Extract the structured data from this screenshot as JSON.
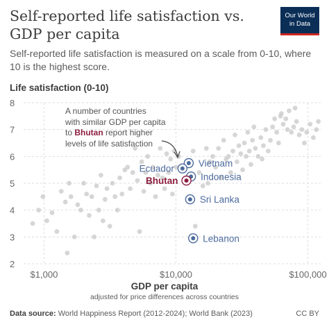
{
  "header": {
    "title": "Self-reported life satisfaction vs. GDP per capita",
    "subtitle": "Self-reported life satisfaction is measured on a scale from 0-10, where 10 is the highest score."
  },
  "logo": {
    "line1": "Our World",
    "line2": "in Data",
    "bg_color": "#0b2e57",
    "accent_color": "#ce261e"
  },
  "footer": {
    "source_label": "Data source:",
    "source_text": "World Happiness Report (2012-2024); World Bank (2023)",
    "license": "CC BY"
  },
  "annotation": {
    "line1": "A number of countries",
    "line2": "with similar GDP per capita",
    "line3_pre": "to ",
    "line3_hl": "Bhutan",
    "line3_post": " report higher",
    "line4": "levels of life satisfaction"
  },
  "chart_data": {
    "type": "scatter",
    "title": "Self-reported life satisfaction vs. GDP per capita",
    "xlabel": "GDP per capita",
    "xlabel_note": "adjusted for price differences across countries",
    "ylabel": "Life satisfaction (0-10)",
    "x_scale": "log",
    "xlim": [
      700,
      125000
    ],
    "ylim": [
      2,
      8
    ],
    "x_ticks": [
      1000,
      10000,
      100000
    ],
    "x_tick_labels": [
      "$1,000",
      "$10,000",
      "$100,000"
    ],
    "y_ticks": [
      2,
      3,
      4,
      5,
      6,
      7,
      8
    ],
    "y_tick_labels": [
      "2",
      "3",
      "4",
      "5",
      "6",
      "7",
      "8"
    ],
    "grid": "horizontal dashed",
    "colors": {
      "background_points": "#cccccc",
      "highlight": "#4c6a9c",
      "bhutan": "#8c1d40"
    },
    "highlighted": [
      {
        "name": "Vietnam",
        "x": 12500,
        "y": 5.75
      },
      {
        "name": "Ecuador",
        "x": 11200,
        "y": 5.55
      },
      {
        "name": "Indonesia",
        "x": 13000,
        "y": 5.25
      },
      {
        "name": "Bhutan",
        "x": 12000,
        "y": 5.1
      },
      {
        "name": "Sri Lanka",
        "x": 12800,
        "y": 4.4
      },
      {
        "name": "Lebanon",
        "x": 13500,
        "y": 2.95
      }
    ],
    "background_points": [
      [
        820,
        3.5
      ],
      [
        910,
        4.0
      ],
      [
        980,
        4.5
      ],
      [
        1050,
        3.6
      ],
      [
        1150,
        3.9
      ],
      [
        1250,
        3.2
      ],
      [
        1350,
        4.7
      ],
      [
        1450,
        4.3
      ],
      [
        1500,
        2.4
      ],
      [
        1550,
        5.0
      ],
      [
        1600,
        4.5
      ],
      [
        1700,
        3.0
      ],
      [
        1800,
        4.2
      ],
      [
        1900,
        4.0
      ],
      [
        2000,
        5.0
      ],
      [
        2100,
        4.6
      ],
      [
        2200,
        3.8
      ],
      [
        2300,
        4.5
      ],
      [
        2400,
        3.0
      ],
      [
        2500,
        4.9
      ],
      [
        2600,
        4.0
      ],
      [
        2700,
        5.3
      ],
      [
        2800,
        3.6
      ],
      [
        2900,
        4.4
      ],
      [
        3000,
        4.8
      ],
      [
        3150,
        3.4
      ],
      [
        3300,
        5.0
      ],
      [
        3450,
        4.5
      ],
      [
        3600,
        4.0
      ],
      [
        3750,
        5.2
      ],
      [
        3900,
        4.6
      ],
      [
        4100,
        5.5
      ],
      [
        4300,
        5.6
      ],
      [
        4500,
        4.8
      ],
      [
        4700,
        5.4
      ],
      [
        4900,
        6.3
      ],
      [
        5100,
        5.1
      ],
      [
        5300,
        3.2
      ],
      [
        5500,
        5.8
      ],
      [
        5700,
        4.7
      ],
      [
        5900,
        5.4
      ],
      [
        6100,
        6.0
      ],
      [
        6400,
        5.0
      ],
      [
        6700,
        5.6
      ],
      [
        7000,
        4.5
      ],
      [
        7300,
        5.3
      ],
      [
        7600,
        6.3
      ],
      [
        7900,
        5.2
      ],
      [
        8200,
        4.8
      ],
      [
        8500,
        6.1
      ],
      [
        8800,
        5.4
      ],
      [
        9100,
        5.9
      ],
      [
        9400,
        4.6
      ],
      [
        9700,
        6.2
      ],
      [
        10000,
        5.6
      ],
      [
        10500,
        6.0
      ],
      [
        14000,
        3.4
      ],
      [
        15000,
        5.4
      ],
      [
        16000,
        4.9
      ],
      [
        17000,
        6.3
      ],
      [
        18000,
        5.8
      ],
      [
        19000,
        6.0
      ],
      [
        20000,
        5.6
      ],
      [
        21000,
        6.3
      ],
      [
        22000,
        5.2
      ],
      [
        23000,
        6.6
      ],
      [
        24000,
        5.9
      ],
      [
        25000,
        6.0
      ],
      [
        26000,
        5.4
      ],
      [
        27000,
        6.2
      ],
      [
        28000,
        6.8
      ],
      [
        29000,
        5.8
      ],
      [
        30000,
        6.4
      ],
      [
        31000,
        6.1
      ],
      [
        32000,
        5.5
      ],
      [
        33000,
        6.5
      ],
      [
        34000,
        6.0
      ],
      [
        35000,
        6.9
      ],
      [
        36000,
        6.2
      ],
      [
        37000,
        5.7
      ],
      [
        38000,
        6.6
      ],
      [
        40000,
        6.3
      ],
      [
        42000,
        6.0
      ],
      [
        44000,
        6.7
      ],
      [
        46000,
        6.4
      ],
      [
        48000,
        7.0
      ],
      [
        50000,
        6.2
      ],
      [
        52000,
        6.6
      ],
      [
        54000,
        7.1
      ],
      [
        56000,
        7.4
      ],
      [
        58000,
        6.9
      ],
      [
        60000,
        6.5
      ],
      [
        63000,
        7.6
      ],
      [
        65000,
        7.2
      ],
      [
        68000,
        7.4
      ],
      [
        72000,
        7.7
      ],
      [
        75000,
        6.9
      ],
      [
        78000,
        7.1
      ],
      [
        82000,
        7.3
      ],
      [
        86000,
        6.8
      ],
      [
        90000,
        7.0
      ],
      [
        94000,
        6.5
      ],
      [
        98000,
        6.9
      ],
      [
        104000,
        7.2
      ],
      [
        110000,
        6.7
      ],
      [
        116000,
        7.0
      ],
      [
        120000,
        7.3
      ],
      [
        62000,
        7.5
      ],
      [
        70000,
        7.0
      ],
      [
        80000,
        7.8
      ],
      [
        45000,
        5.9
      ],
      [
        39000,
        7.1
      ],
      [
        17500,
        5.0
      ],
      [
        13500,
        6.2
      ]
    ]
  }
}
